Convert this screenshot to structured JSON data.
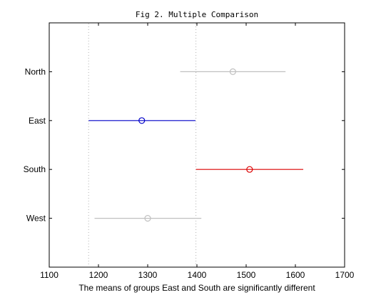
{
  "chart_data": {
    "type": "interval",
    "title": "Fig 2. Multiple Comparison",
    "xlabel": "The means of groups East and South are significantly different",
    "ylabel": "",
    "xlim": [
      1100,
      1700
    ],
    "xticks": [
      1100,
      1200,
      1300,
      1400,
      1500,
      1600,
      1700
    ],
    "grid": "off",
    "reference_lines_x": [
      1180,
      1398
    ],
    "groups": [
      {
        "label": "North",
        "mean": 1473,
        "lower": 1366,
        "upper": 1580,
        "color": "#c0c0c0"
      },
      {
        "label": "East",
        "mean": 1288,
        "lower": 1180,
        "upper": 1397,
        "color": "#0000c8"
      },
      {
        "label": "South",
        "mean": 1507,
        "lower": 1398,
        "upper": 1616,
        "color": "#dc0000"
      },
      {
        "label": "West",
        "mean": 1300,
        "lower": 1192,
        "upper": 1409,
        "color": "#c0c0c0"
      }
    ]
  }
}
